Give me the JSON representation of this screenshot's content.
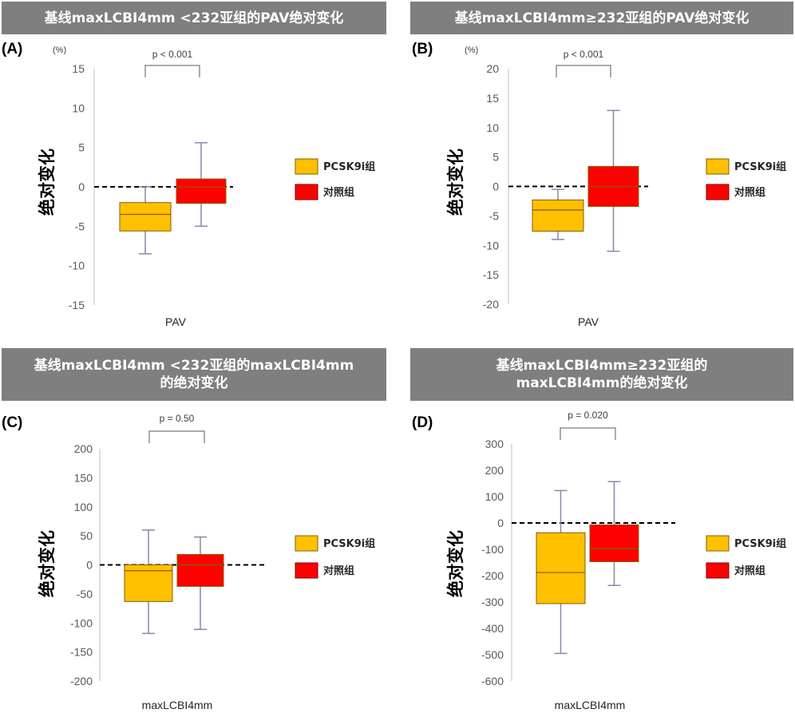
{
  "colors": {
    "header_bg": "#7f7f7f",
    "pcsk9": "#ffc000",
    "control": "#ff0000",
    "whisker": "#8e85a8"
  },
  "panels": [
    {
      "header": "基线maxLCBI4mm <232亚组的PAV绝对变化",
      "tag": "(A)",
      "unit": "(%)",
      "pvalue": "p < 0.001",
      "ylabel": "绝对变化",
      "legend": [
        "PCSK9i组",
        "对照组"
      ],
      "chart_data": {
        "type": "box",
        "xlabel": "PAV",
        "ylim": [
          -15,
          15
        ],
        "ticks": [
          15,
          10,
          5,
          0,
          -5,
          -10,
          -15
        ],
        "reference_line": 0,
        "series": [
          {
            "name": "PCSK9i组",
            "min": -8.5,
            "q1": -5.6,
            "median": -3.5,
            "q3": -2.0,
            "max": 0.0
          },
          {
            "name": "对照组",
            "min": -5.0,
            "q1": -2.1,
            "median": 0.0,
            "q3": 1.0,
            "max": 5.6
          }
        ]
      }
    },
    {
      "header": "基线maxLCBI4mm≥232亚组的PAV绝对变化",
      "tag": "(B)",
      "unit": "(%)",
      "pvalue": "p < 0.001",
      "ylabel": "绝对变化",
      "legend": [
        "PCSK9i组",
        "对照组"
      ],
      "chart_data": {
        "type": "box",
        "xlabel": "PAV",
        "ylim": [
          -20,
          20
        ],
        "ticks": [
          20,
          15,
          10,
          5,
          0,
          -5,
          -10,
          -15,
          -20
        ],
        "reference_line": 0,
        "series": [
          {
            "name": "PCSK9i组",
            "min": -9.0,
            "q1": -7.6,
            "median": -4.0,
            "q3": -2.3,
            "max": -0.5
          },
          {
            "name": "对照组",
            "min": -11.0,
            "q1": -3.4,
            "median": 0.0,
            "q3": 3.4,
            "max": 12.9
          }
        ]
      }
    },
    {
      "header": "基线maxLCBI4mm <232亚组的maxLCBI4mm\n的绝对变化",
      "tag": "(C)",
      "unit": "",
      "pvalue": "p = 0.50",
      "ylabel": "绝对变化",
      "legend": [
        "PCSK9i组",
        "对照组"
      ],
      "chart_data": {
        "type": "box",
        "xlabel": "maxLCBI4mm",
        "ylim": [
          -200,
          200
        ],
        "ticks": [
          200,
          150,
          100,
          50,
          0,
          -50,
          -100,
          -150,
          -200
        ],
        "reference_line": 0,
        "series": [
          {
            "name": "PCSK9i组",
            "min": -118,
            "q1": -63,
            "median": -10,
            "q3": 0,
            "max": 60
          },
          {
            "name": "对照组",
            "min": -111,
            "q1": -37,
            "median": 0,
            "q3": 18,
            "max": 48
          }
        ]
      }
    },
    {
      "header": "基线maxLCBI4mm≥232亚组的\nmaxLCBI4mm的绝对变化",
      "tag": "(D)",
      "unit": "",
      "pvalue": "p = 0.020",
      "ylabel": "绝对变化",
      "legend": [
        "PCSK9i组",
        "对照组"
      ],
      "chart_data": {
        "type": "box",
        "xlabel": "maxLCBI4mm",
        "ylim": [
          -600,
          300
        ],
        "ticks": [
          300,
          200,
          100,
          0,
          -100,
          -200,
          -300,
          -400,
          -500,
          -600
        ],
        "reference_line": 0,
        "series": [
          {
            "name": "PCSK9i组",
            "min": -495,
            "q1": -306,
            "median": -188,
            "q3": -37,
            "max": 123
          },
          {
            "name": "对照组",
            "min": -237,
            "q1": -147,
            "median": -97,
            "q3": -7,
            "max": 157
          }
        ]
      }
    }
  ]
}
